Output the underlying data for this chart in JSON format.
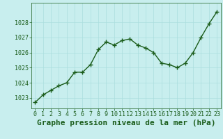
{
  "x": [
    0,
    1,
    2,
    3,
    4,
    5,
    6,
    7,
    8,
    9,
    10,
    11,
    12,
    13,
    14,
    15,
    16,
    17,
    18,
    19,
    20,
    21,
    22,
    23
  ],
  "y": [
    1022.7,
    1023.2,
    1023.5,
    1023.8,
    1024.0,
    1024.7,
    1024.7,
    1025.2,
    1026.2,
    1026.7,
    1026.5,
    1026.8,
    1026.9,
    1026.5,
    1026.3,
    1026.0,
    1025.3,
    1025.2,
    1025.0,
    1025.3,
    1026.0,
    1027.0,
    1027.9,
    1028.7
  ],
  "line_color": "#1a5c1a",
  "marker": "+",
  "marker_size": 4,
  "marker_lw": 1.0,
  "bg_color": "#c8eeee",
  "grid_color": "#aadddd",
  "xlabel": "Graphe pression niveau de la mer (hPa)",
  "xlabel_fontsize": 8,
  "xlabel_color": "#1a5c1a",
  "yticks": [
    1023,
    1024,
    1025,
    1026,
    1027,
    1028
  ],
  "ylim": [
    1022.3,
    1029.3
  ],
  "xlim": [
    -0.5,
    23.5
  ],
  "tick_color": "#1a5c1a",
  "tick_fontsize": 6,
  "line_width": 1.0
}
